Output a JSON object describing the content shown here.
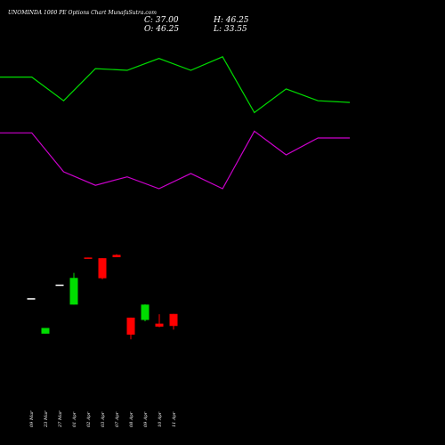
{
  "chart_data": {
    "type": "candlestick",
    "title": "UNOMINDA 1000 PE Options Chart MunafaSutra.com",
    "ohlc_readout": {
      "close_label": "C:",
      "close": "37.00",
      "high_label": "H:",
      "high": "46.25",
      "open_label": "O:",
      "open": "46.25",
      "low_label": "L:",
      "low": "33.55"
    },
    "categories": [
      "09 Mar",
      "23 Mar",
      "27 Mar",
      "01 Apr",
      "02 Apr",
      "03 Apr",
      "07 Apr",
      "08 Apr",
      "09 Apr",
      "10 Apr",
      "11 Apr"
    ],
    "candles": [
      {
        "date": "09 Mar",
        "open": 173.0,
        "high": 173.0,
        "low": 173.0,
        "close": 173.0
      },
      {
        "date": "23 Mar",
        "open": 67.0,
        "high": 84.0,
        "low": 67.0,
        "close": 84.0
      },
      {
        "date": "27 Mar",
        "open": 214.0,
        "high": 214.0,
        "low": 214.0,
        "close": 214.0
      },
      {
        "date": "01 Apr",
        "open": 154.0,
        "high": 249.0,
        "low": 154.0,
        "close": 234.0
      },
      {
        "date": "02 Apr",
        "open": 295.0,
        "high": 295.0,
        "low": 293.0,
        "close": 293.0
      },
      {
        "date": "03 Apr",
        "open": 293.0,
        "high": 293.0,
        "low": 230.0,
        "close": 233.0
      },
      {
        "date": "07 Apr",
        "open": 303.0,
        "high": 305.0,
        "low": 296.0,
        "close": 296.0
      },
      {
        "date": "08 Apr",
        "open": 115.0,
        "high": 115.0,
        "low": 50.0,
        "close": 64.0
      },
      {
        "date": "09 Apr",
        "open": 108.0,
        "high": 155.0,
        "low": 104.0,
        "close": 154.0
      },
      {
        "date": "10 Apr",
        "open": 97.0,
        "high": 125.0,
        "low": 86.0,
        "close": 88.0
      },
      {
        "date": "11 Apr",
        "open": 126.0,
        "high": 126.0,
        "low": 79.0,
        "close": 90.0
      }
    ],
    "ylim": [
      0,
      400
    ],
    "indicator_panel": {
      "ylim": [
        0,
        100
      ],
      "series": [
        {
          "color": "#00dd00",
          "values": [
            86,
            86,
            72,
            91,
            90,
            97,
            90,
            98,
            65,
            79,
            72,
            71
          ]
        },
        {
          "color": "#cc00cc",
          "values": [
            53,
            53,
            30,
            22,
            27,
            20,
            29,
            20,
            54,
            40,
            50,
            50
          ]
        }
      ]
    },
    "colors": {
      "up": "#00dd00",
      "down": "#ff0000",
      "flat": "#ffffff",
      "background": "#000000"
    },
    "grid": false
  }
}
